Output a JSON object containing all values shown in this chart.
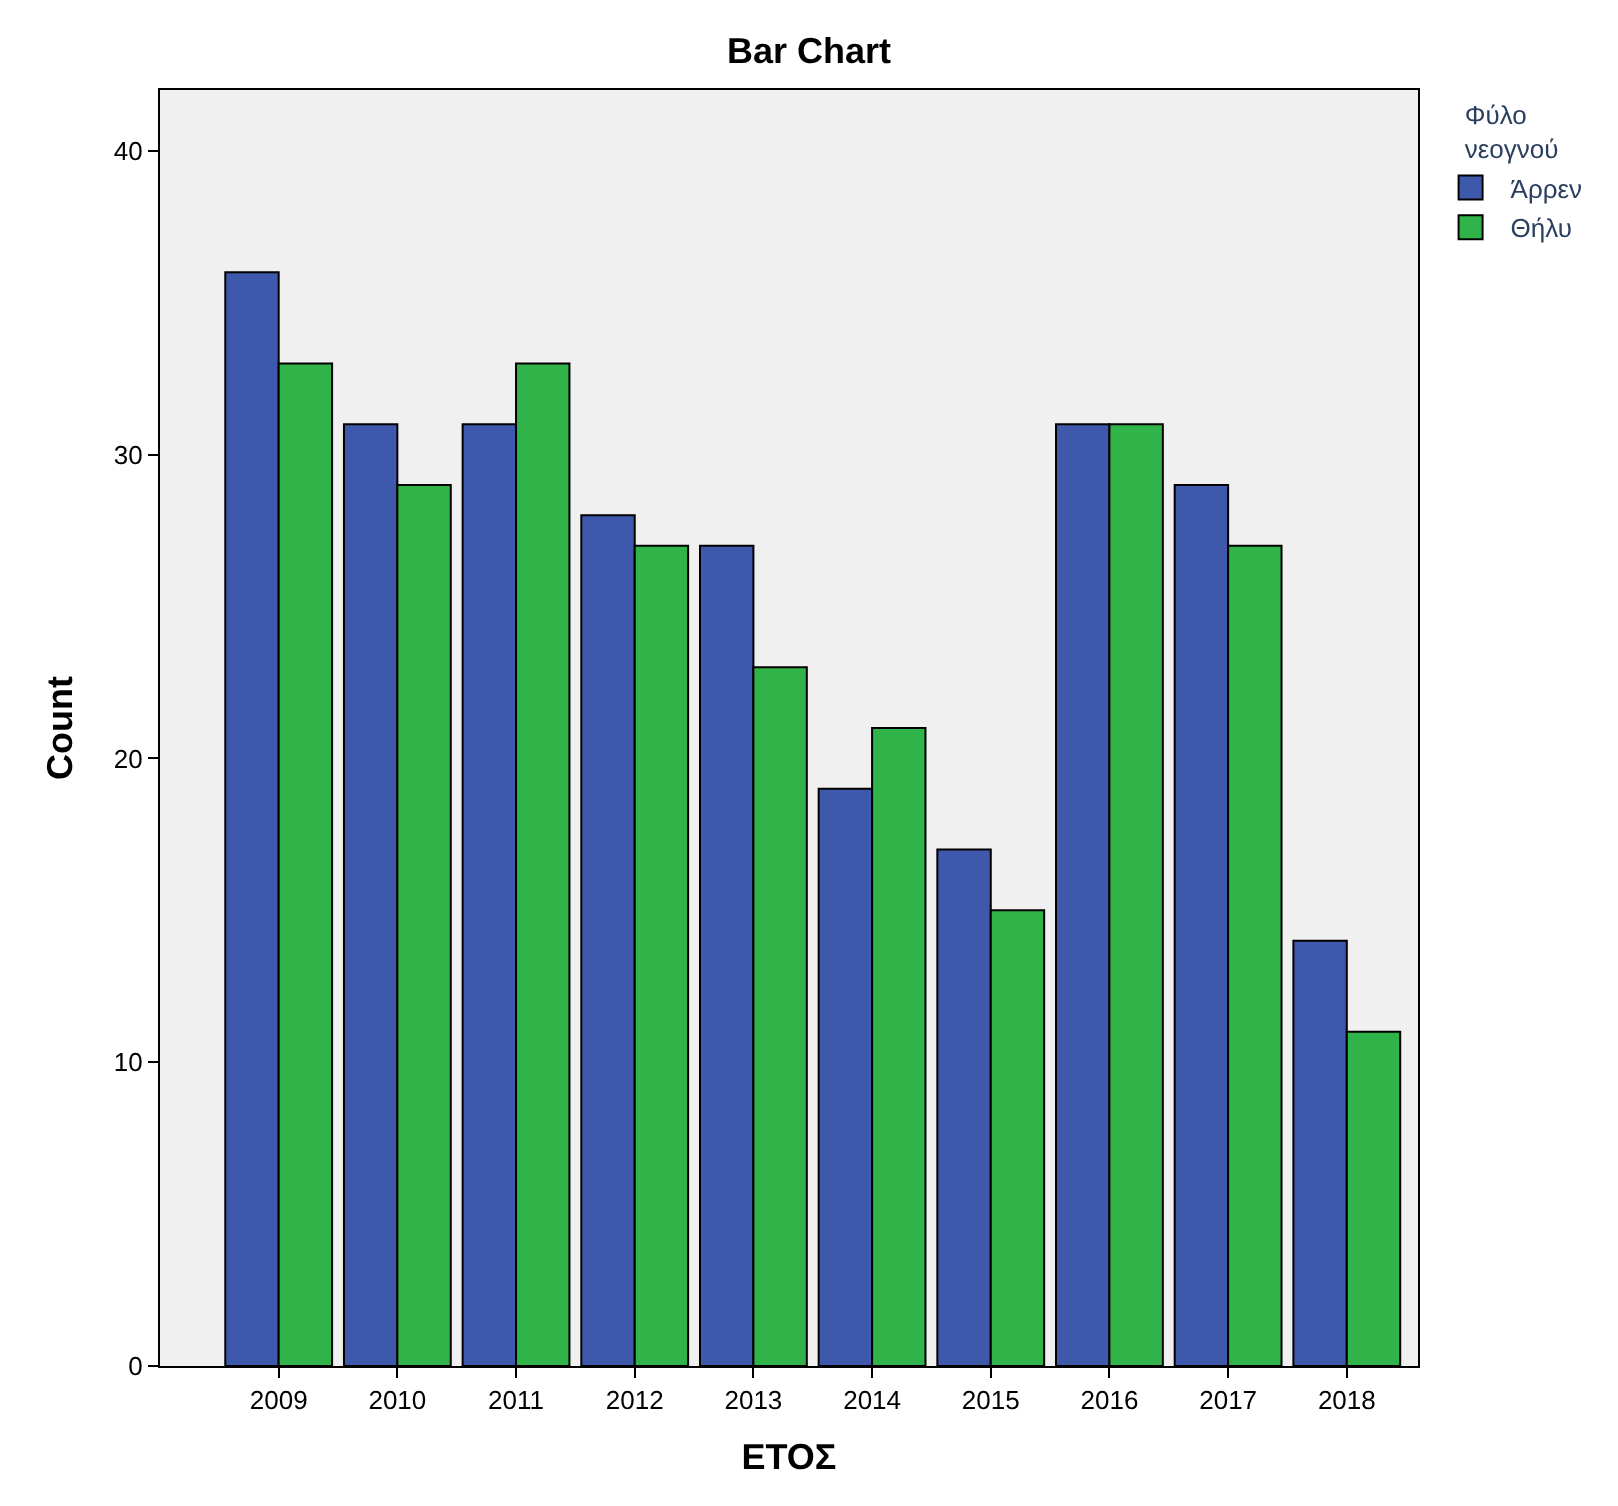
{
  "chart_data": {
    "type": "bar",
    "title": "Bar Chart",
    "xlabel": "ΕΤΟΣ",
    "ylabel": "Count",
    "legend_title": "Φύλο νεογνού",
    "categories": [
      "2009",
      "2010",
      "2011",
      "2012",
      "2013",
      "2014",
      "2015",
      "2016",
      "2017",
      "2018"
    ],
    "series": [
      {
        "name": "Άρρεν",
        "color": "#3e58ac",
        "values": [
          36,
          31,
          31,
          28,
          27,
          19,
          17,
          31,
          29,
          14
        ]
      },
      {
        "name": "Θήλυ",
        "color": "#30b44a",
        "values": [
          33,
          29,
          33,
          27,
          23,
          21,
          15,
          31,
          27,
          11
        ]
      }
    ],
    "ylim": [
      0,
      42
    ],
    "yticks": [
      0,
      10,
      20,
      30,
      40
    ],
    "grid": false,
    "legend": "top right"
  }
}
